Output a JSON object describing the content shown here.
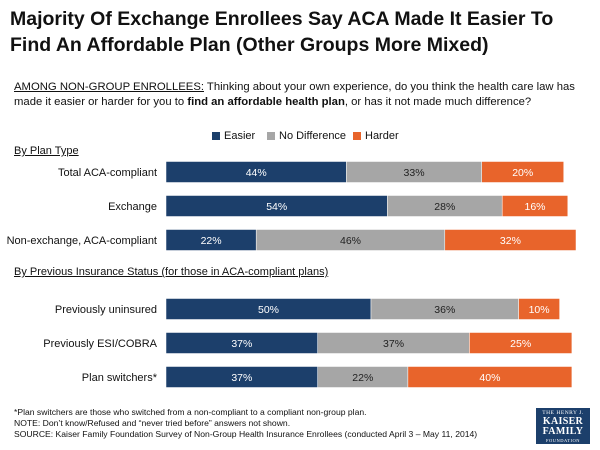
{
  "title": "Majority Of Exchange Enrollees Say ACA Made It Easier To Find An Affordable Plan (Other Groups More Mixed)",
  "question": {
    "prefix": "AMONG NON-GROUP ENROLLEES:",
    "text_before": " Thinking about your own experience, do you think the health care law has made it easier or harder for you to ",
    "bold": "find an affordable health plan",
    "text_after": ", or has it not made much difference?"
  },
  "footnotes": [
    "*Plan switchers are those who switched from a non-compliant to a compliant non-group plan.",
    "NOTE: Don’t know/Refused and “never tried before” answers not shown.",
    "SOURCE: Kaiser Family Foundation Survey of Non-Group Health Insurance Enrollees (conducted April 3 – May 11, 2014)"
  ],
  "logo": {
    "line1": "THE HENRY J.",
    "line2": "KAISER",
    "line3": "FAMILY",
    "line4": "FOUNDATION"
  },
  "chart_data": {
    "type": "bar",
    "orientation": "horizontal",
    "stacked": true,
    "value_suffix": "%",
    "xlim": [
      0,
      100
    ],
    "legend_position": "top",
    "series": [
      {
        "name": "Easier",
        "color": "#1c3f6b"
      },
      {
        "name": "No Difference",
        "color": "#a6a6a6"
      },
      {
        "name": "Harder",
        "color": "#e8642b"
      }
    ],
    "groups": [
      {
        "label": "By Plan Type",
        "categories": [
          "Total ACA-compliant",
          "Exchange",
          "Non-exchange, ACA-compliant"
        ],
        "values": [
          [
            44,
            33,
            20
          ],
          [
            54,
            28,
            16
          ],
          [
            22,
            46,
            32
          ]
        ]
      },
      {
        "label": "By Previous Insurance Status (for those in ACA-compliant plans)",
        "categories": [
          "Previously uninsured",
          "Previously ESI/COBRA",
          "Plan switchers*"
        ],
        "values": [
          [
            50,
            36,
            10
          ],
          [
            37,
            37,
            25
          ],
          [
            37,
            22,
            40
          ]
        ]
      }
    ]
  }
}
